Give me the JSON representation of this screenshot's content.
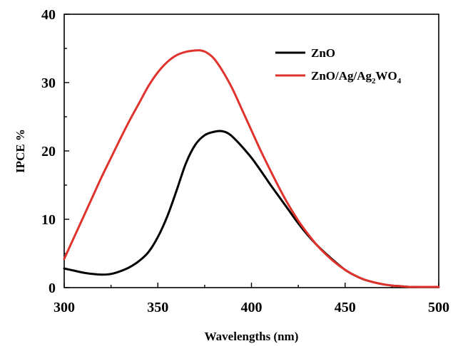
{
  "chart_data": {
    "type": "line",
    "xlabel": "Wavelengths (nm)",
    "ylabel": "IPCE %",
    "xlim": [
      300,
      500
    ],
    "ylim": [
      0,
      40
    ],
    "xticks": [
      300,
      350,
      400,
      450,
      500
    ],
    "yticks": [
      0,
      10,
      20,
      30,
      40
    ],
    "grid": false,
    "legend_position": "top-right",
    "series": [
      {
        "name": "ZnO",
        "legend_parts": [
          [
            "ZnO",
            false
          ]
        ],
        "color": "#000000",
        "x": [
          300,
          305,
          310,
          315,
          320,
          325,
          330,
          335,
          340,
          345,
          350,
          355,
          360,
          365,
          370,
          375,
          380,
          384,
          388,
          392,
          396,
          400,
          405,
          410,
          415,
          420,
          425,
          430,
          435,
          440,
          445,
          450,
          455,
          460,
          465,
          470,
          475,
          480,
          485,
          490,
          495,
          500
        ],
        "y": [
          2.8,
          2.5,
          2.2,
          2.0,
          1.9,
          2.0,
          2.4,
          3.0,
          3.9,
          5.2,
          7.4,
          10.4,
          14.2,
          18.2,
          20.9,
          22.3,
          22.8,
          22.9,
          22.5,
          21.5,
          20.3,
          19.0,
          17.1,
          15.1,
          13.2,
          11.3,
          9.4,
          7.7,
          6.2,
          4.9,
          3.7,
          2.6,
          1.8,
          1.2,
          0.8,
          0.5,
          0.3,
          0.2,
          0.1,
          0.1,
          0.1,
          0.1
        ]
      },
      {
        "name": "ZnO/Ag/Ag2WO4",
        "legend_parts": [
          [
            "ZnO/Ag/Ag",
            false
          ],
          [
            "2",
            true
          ],
          [
            "WO",
            false
          ],
          [
            "4",
            true
          ]
        ],
        "color": "#e0332e",
        "x": [
          300,
          305,
          310,
          315,
          320,
          325,
          330,
          335,
          340,
          345,
          350,
          355,
          360,
          365,
          370,
          373,
          376,
          380,
          385,
          390,
          395,
          400,
          405,
          410,
          415,
          420,
          425,
          430,
          435,
          440,
          445,
          450,
          455,
          460,
          465,
          470,
          475,
          480,
          485,
          490,
          495,
          500
        ],
        "y": [
          4.2,
          7.2,
          10.2,
          13.2,
          16.2,
          19.0,
          21.8,
          24.5,
          27.0,
          29.5,
          31.5,
          33.0,
          34.0,
          34.5,
          34.7,
          34.7,
          34.4,
          33.5,
          31.5,
          29.0,
          26.0,
          23.0,
          20.0,
          17.2,
          14.5,
          12.0,
          9.8,
          7.9,
          6.2,
          4.8,
          3.6,
          2.6,
          1.8,
          1.2,
          0.8,
          0.5,
          0.3,
          0.2,
          0.1,
          0.1,
          0.1,
          0.1
        ]
      }
    ]
  }
}
